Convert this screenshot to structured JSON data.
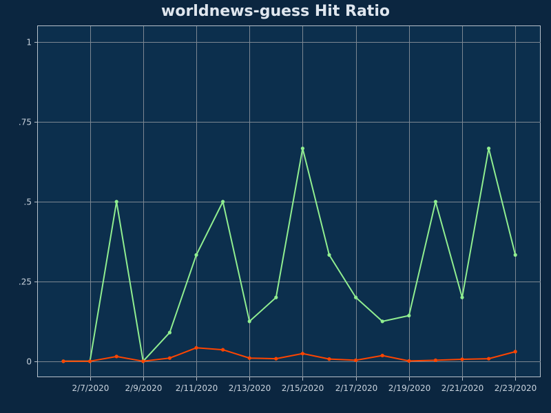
{
  "chart_data": {
    "type": "line",
    "title": "worldnews-guess Hit Ratio",
    "xlabel": "",
    "ylabel": "",
    "x": [
      "2/6/2020",
      "2/7/2020",
      "2/8/2020",
      "2/9/2020",
      "2/10/2020",
      "2/11/2020",
      "2/12/2020",
      "2/13/2020",
      "2/14/2020",
      "2/15/2020",
      "2/16/2020",
      "2/17/2020",
      "2/18/2020",
      "2/19/2020",
      "2/20/2020",
      "2/21/2020",
      "2/22/2020",
      "2/23/2020"
    ],
    "x_tick_labels": [
      "2/7/2020",
      "2/9/2020",
      "2/11/2020",
      "2/13/2020",
      "2/15/2020",
      "2/17/2020",
      "2/19/2020",
      "2/21/2020",
      "2/23/2020"
    ],
    "y_ticks": [
      0,
      0.25,
      0.5,
      0.75,
      1
    ],
    "y_tick_labels": [
      "0",
      ".25",
      ".5",
      ".75",
      "1"
    ],
    "ylim": [
      -0.05,
      1.05
    ],
    "grid": true,
    "series": [
      {
        "color": "#90ee90",
        "values": [
          0,
          0,
          0.5,
          0,
          0.09,
          0.333,
          0.5,
          0.125,
          0.2,
          0.667,
          0.333,
          0.2,
          0.125,
          0.143,
          0.5,
          0.2,
          0.667,
          0.333
        ]
      },
      {
        "color": "#ff4500",
        "values": [
          0,
          0,
          0.015,
          0,
          0.01,
          0.042,
          0.036,
          0.01,
          0.008,
          0.024,
          0.007,
          0.003,
          0.018,
          0.001,
          0.003,
          0.006,
          0.008,
          0.03
        ]
      }
    ]
  }
}
